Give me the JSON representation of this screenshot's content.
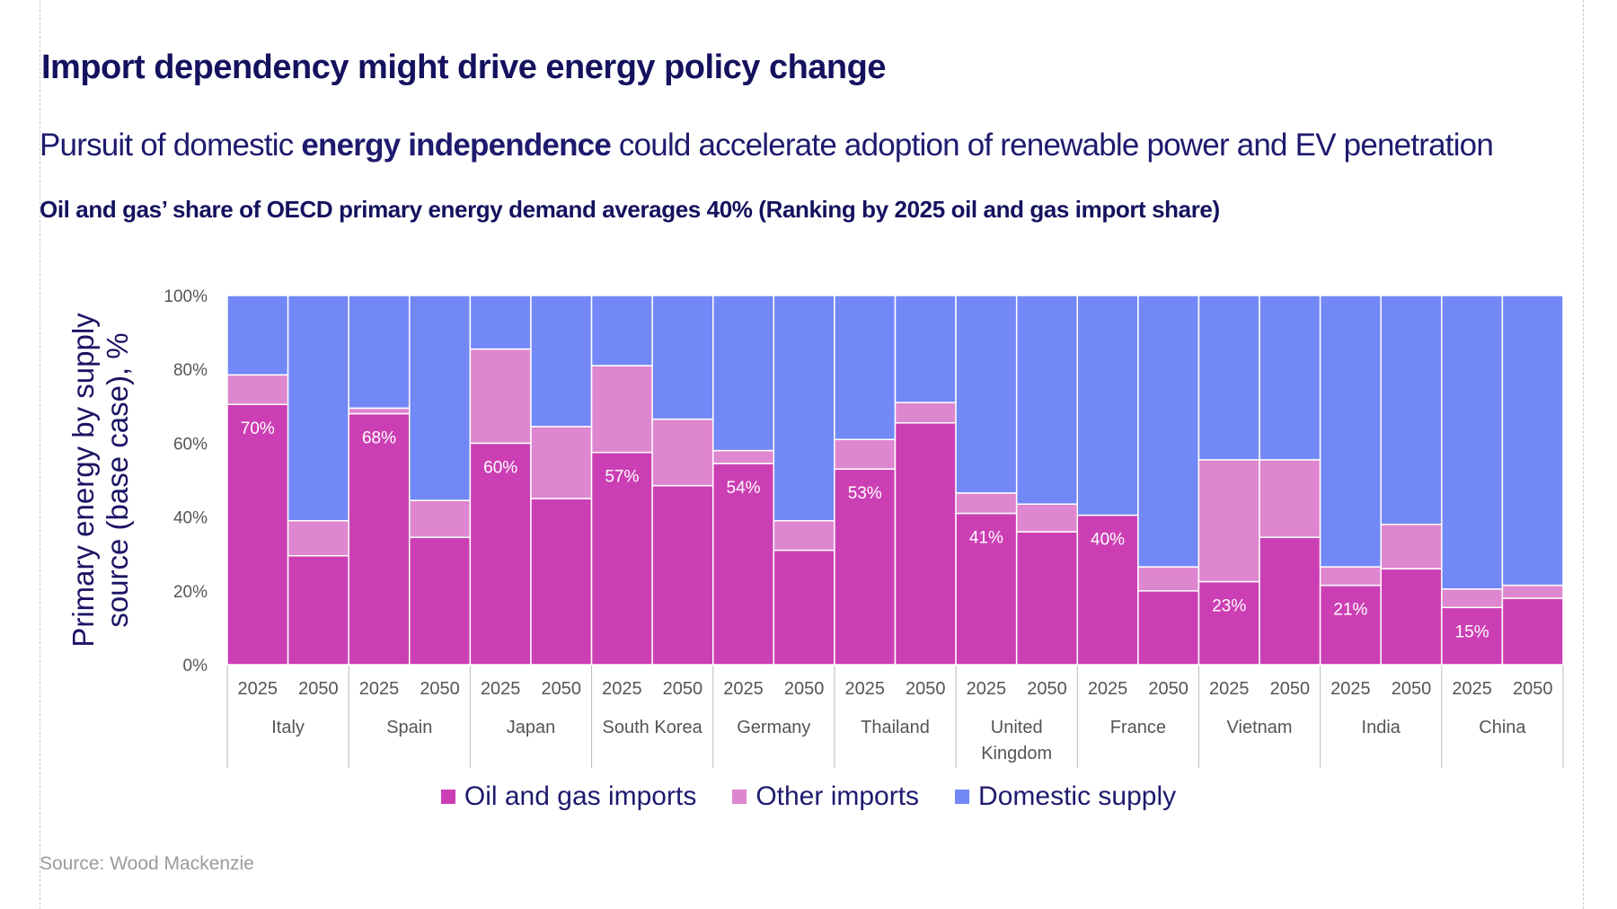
{
  "title": "Import dependency might drive energy policy change",
  "subtitle": {
    "prefix": "Pursuit of domestic ",
    "bold": "energy independence",
    "suffix": " could accelerate adoption of renewable power and EV penetration"
  },
  "chart_heading": "Oil and gas’ share of OECD primary energy demand averages 40% (Ranking by 2025 oil and gas import share)",
  "source": "Source: Wood Mackenzie",
  "colors": {
    "oil_gas_imports": "#cc3fb4",
    "other_imports": "#de86cf",
    "domestic_supply": "#7288f6"
  },
  "chart_data": {
    "type": "bar",
    "stacked": true,
    "ylabel": "Primary energy by supply source (base case), %",
    "ylim": [
      0,
      100
    ],
    "yticks": [
      "0%",
      "20%",
      "40%",
      "60%",
      "80%",
      "100%"
    ],
    "grid": false,
    "legend_position": "bottom",
    "groups": [
      {
        "label": "Italy",
        "bars": [
          {
            "year": "2025",
            "oil_gas": 70.5,
            "other": 8,
            "label": "70%"
          },
          {
            "year": "2050",
            "oil_gas": 29.5,
            "other": 9.5
          }
        ]
      },
      {
        "label": "Spain",
        "bars": [
          {
            "year": "2025",
            "oil_gas": 68,
            "other": 1.5,
            "label": "68%"
          },
          {
            "year": "2050",
            "oil_gas": 34.5,
            "other": 10
          }
        ]
      },
      {
        "label": "Japan",
        "bars": [
          {
            "year": "2025",
            "oil_gas": 60,
            "other": 25.5,
            "label": "60%"
          },
          {
            "year": "2050",
            "oil_gas": 45,
            "other": 19.5
          }
        ]
      },
      {
        "label": "South Korea",
        "bars": [
          {
            "year": "2025",
            "oil_gas": 57.5,
            "other": 23.5,
            "label": "57%"
          },
          {
            "year": "2050",
            "oil_gas": 48.5,
            "other": 18
          }
        ]
      },
      {
        "label": "Germany",
        "bars": [
          {
            "year": "2025",
            "oil_gas": 54.5,
            "other": 3.5,
            "label": "54%"
          },
          {
            "year": "2050",
            "oil_gas": 31,
            "other": 8
          }
        ]
      },
      {
        "label": "Thailand",
        "bars": [
          {
            "year": "2025",
            "oil_gas": 53,
            "other": 8,
            "label": "53%"
          },
          {
            "year": "2050",
            "oil_gas": 65.5,
            "other": 5.5
          }
        ]
      },
      {
        "label": "United Kingdom",
        "bars": [
          {
            "year": "2025",
            "oil_gas": 41,
            "other": 5.5,
            "label": "41%"
          },
          {
            "year": "2050",
            "oil_gas": 36,
            "other": 7.5
          }
        ]
      },
      {
        "label": "France",
        "bars": [
          {
            "year": "2025",
            "oil_gas": 40.5,
            "other": 0,
            "label": "40%"
          },
          {
            "year": "2050",
            "oil_gas": 20,
            "other": 6.5
          }
        ]
      },
      {
        "label": "Vietnam",
        "bars": [
          {
            "year": "2025",
            "oil_gas": 22.5,
            "other": 33,
            "label": "23%"
          },
          {
            "year": "2050",
            "oil_gas": 34.5,
            "other": 21
          }
        ]
      },
      {
        "label": "India",
        "bars": [
          {
            "year": "2025",
            "oil_gas": 21.5,
            "other": 5,
            "label": "21%"
          },
          {
            "year": "2050",
            "oil_gas": 26,
            "other": 12
          }
        ]
      },
      {
        "label": "China",
        "bars": [
          {
            "year": "2025",
            "oil_gas": 15.5,
            "other": 5,
            "label": "15%"
          },
          {
            "year": "2050",
            "oil_gas": 18,
            "other": 3.5
          }
        ]
      }
    ],
    "series": [
      {
        "name": "Oil and gas imports",
        "key": "oil_gas"
      },
      {
        "name": "Other imports",
        "key": "other"
      },
      {
        "name": "Domestic supply",
        "key": "domestic"
      }
    ]
  }
}
